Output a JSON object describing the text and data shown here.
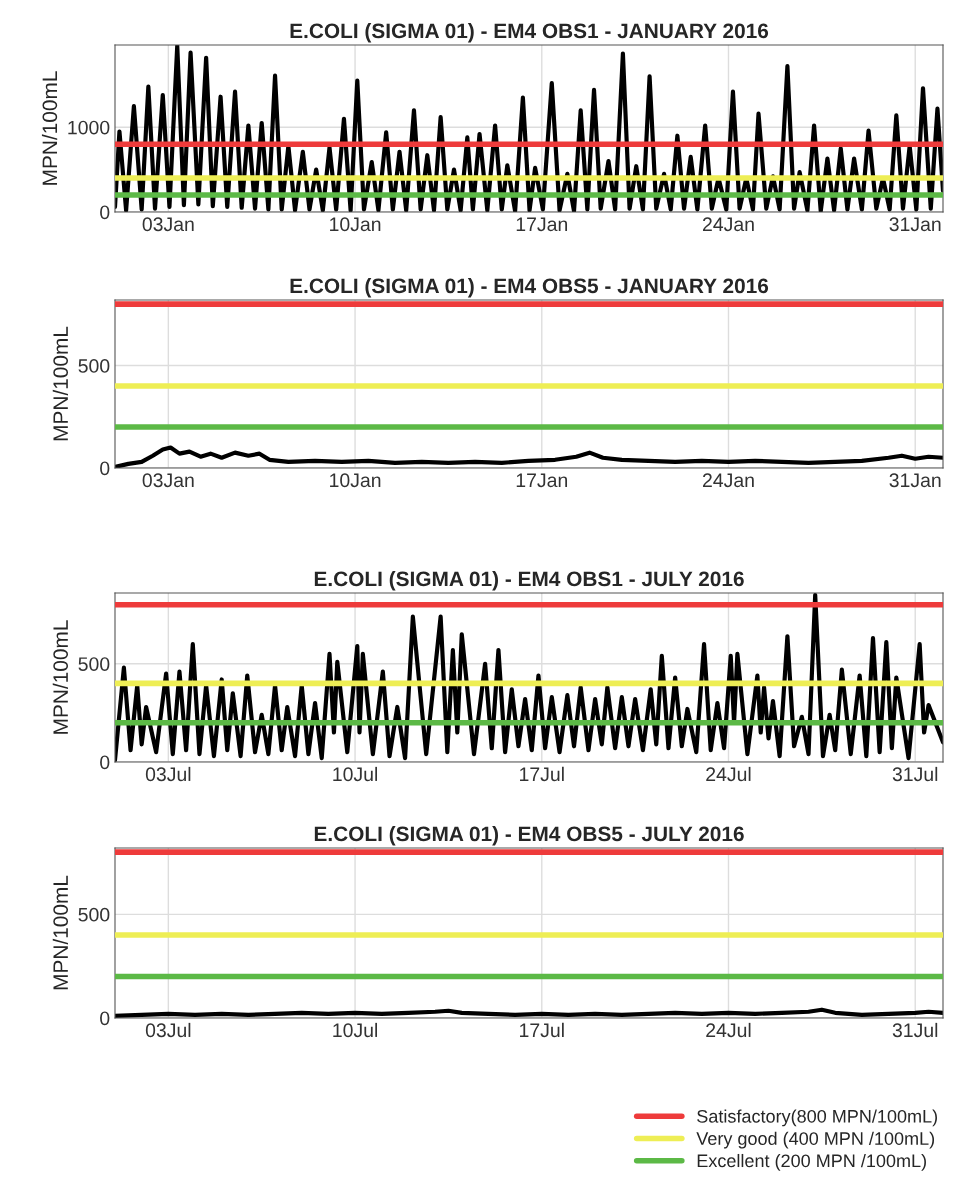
{
  "chart_data": [
    {
      "type": "line",
      "title": "E.COLI (SIGMA 01) - EM4 OBS1 - JANUARY 2016",
      "ylabel": "MPN/100mL",
      "grid": true,
      "legend": false,
      "line_style": "solid",
      "xlim": [
        "2016-01-01T00:00",
        "2016-02-01T01:00"
      ],
      "xticks": [
        {
          "value": "2016-01-03",
          "label": "03Jan"
        },
        {
          "value": "2016-01-10",
          "label": "10Jan"
        },
        {
          "value": "2016-01-17",
          "label": "17Jan"
        },
        {
          "value": "2016-01-24",
          "label": "24Jan"
        },
        {
          "value": "2016-01-31",
          "label": "31Jan"
        }
      ],
      "ylim": [
        0,
        1970
      ],
      "yticks": [
        0,
        1000
      ],
      "series": [
        {
          "color": "#000000",
          "x": [
            "2016-01-01T00:00",
            "2016-01-01T04:00",
            "2016-01-01T10:00",
            "2016-01-01T17:00",
            "2016-01-02T00:00",
            "2016-01-02T06:00",
            "2016-01-02T12:00",
            "2016-01-02T19:00",
            "2016-01-03T01:00",
            "2016-01-03T08:00",
            "2016-01-03T14:00",
            "2016-01-03T20:00",
            "2016-01-04T03:00",
            "2016-01-04T10:00",
            "2016-01-04T16:00",
            "2016-01-04T23:00",
            "2016-01-05T05:00",
            "2016-01-05T12:00",
            "2016-01-05T18:00",
            "2016-01-06T00:00",
            "2016-01-06T06:00",
            "2016-01-06T12:00",
            "2016-01-06T18:00",
            "2016-01-07T00:00",
            "2016-01-07T06:00",
            "2016-01-07T12:00",
            "2016-01-07T18:00",
            "2016-01-08T01:00",
            "2016-01-08T07:00",
            "2016-01-08T13:00",
            "2016-01-08T19:00",
            "2016-01-09T01:00",
            "2016-01-09T07:00",
            "2016-01-09T14:00",
            "2016-01-09T20:00",
            "2016-01-10T02:00",
            "2016-01-10T08:00",
            "2016-01-10T15:00",
            "2016-01-10T21:00",
            "2016-01-11T04:00",
            "2016-01-11T10:00",
            "2016-01-11T16:00",
            "2016-01-11T22:00",
            "2016-01-12T05:00",
            "2016-01-12T11:00",
            "2016-01-12T17:00",
            "2016-01-12T23:00",
            "2016-01-13T05:00",
            "2016-01-13T11:00",
            "2016-01-13T17:00",
            "2016-01-13T23:00",
            "2016-01-14T05:00",
            "2016-01-14T10:00",
            "2016-01-14T16:00",
            "2016-01-14T23:00",
            "2016-01-15T06:00",
            "2016-01-15T12:00",
            "2016-01-15T17:00",
            "2016-01-16T00:00",
            "2016-01-16T07:00",
            "2016-01-16T13:00",
            "2016-01-16T18:00",
            "2016-01-17T01:00",
            "2016-01-17T09:00",
            "2016-01-17T16:00",
            "2016-01-17T23:00",
            "2016-01-18T05:00",
            "2016-01-18T11:00",
            "2016-01-18T17:00",
            "2016-01-18T23:00",
            "2016-01-19T05:00",
            "2016-01-19T12:00",
            "2016-01-19T18:00",
            "2016-01-20T01:00",
            "2016-01-20T07:00",
            "2016-01-20T13:00",
            "2016-01-20T19:00",
            "2016-01-21T01:00",
            "2016-01-21T07:00",
            "2016-01-21T14:00",
            "2016-01-21T20:00",
            "2016-01-22T02:00",
            "2016-01-22T08:00",
            "2016-01-22T14:00",
            "2016-01-22T20:00",
            "2016-01-23T03:00",
            "2016-01-23T09:00",
            "2016-01-23T15:00",
            "2016-01-23T22:00",
            "2016-01-24T04:00",
            "2016-01-24T10:00",
            "2016-01-24T16:00",
            "2016-01-24T22:00",
            "2016-01-25T03:00",
            "2016-01-25T10:00",
            "2016-01-25T16:00",
            "2016-01-25T22:00",
            "2016-01-26T05:00",
            "2016-01-26T11:00",
            "2016-01-26T16:00",
            "2016-01-26T23:00",
            "2016-01-27T05:00",
            "2016-01-27T11:00",
            "2016-01-27T17:00",
            "2016-01-27T23:00",
            "2016-01-28T05:00",
            "2016-01-28T11:00",
            "2016-01-28T17:00",
            "2016-01-29T00:00",
            "2016-01-29T06:00",
            "2016-01-29T13:00",
            "2016-01-29T19:00",
            "2016-01-30T01:00",
            "2016-01-30T07:00",
            "2016-01-30T13:00",
            "2016-01-30T19:00",
            "2016-01-31T01:00",
            "2016-01-31T07:00",
            "2016-01-31T14:00",
            "2016-01-31T20:00",
            "2016-02-01T01:00"
          ],
          "values": [
            60,
            950,
            20,
            1250,
            30,
            1480,
            40,
            1380,
            60,
            1960,
            80,
            1880,
            90,
            1820,
            70,
            1360,
            60,
            1420,
            50,
            1020,
            40,
            1050,
            30,
            1610,
            30,
            780,
            20,
            710,
            30,
            500,
            20,
            760,
            30,
            1100,
            20,
            1550,
            30,
            590,
            20,
            940,
            30,
            710,
            20,
            1200,
            30,
            670,
            20,
            1120,
            30,
            500,
            20,
            880,
            30,
            920,
            20,
            1020,
            30,
            550,
            10,
            1350,
            20,
            520,
            30,
            1520,
            20,
            450,
            10,
            1200,
            30,
            1440,
            40,
            600,
            30,
            1870,
            40,
            540,
            30,
            1600,
            40,
            450,
            30,
            900,
            40,
            650,
            30,
            1020,
            40,
            400,
            30,
            1420,
            40,
            400,
            30,
            1160,
            40,
            420,
            30,
            1720,
            40,
            470,
            20,
            1020,
            10,
            630,
            20,
            750,
            30,
            630,
            30,
            960,
            40,
            400,
            30,
            1140,
            40,
            780,
            30,
            1460,
            40,
            1220,
            250
          ]
        }
      ],
      "ref_lines": [
        {
          "axis": "y",
          "value": 800,
          "color": "#ee3b3b"
        },
        {
          "axis": "y",
          "value": 400,
          "color": "#eeee55"
        },
        {
          "axis": "y",
          "value": 200,
          "color": "#5cb946"
        }
      ]
    },
    {
      "type": "line",
      "title": "E.COLI (SIGMA 01) - EM4 OBS5 - JANUARY 2016",
      "ylabel": "MPN/100mL",
      "grid": true,
      "legend": false,
      "line_style": "solid",
      "xlim": [
        "2016-01-01T00:00",
        "2016-02-01T01:00"
      ],
      "xticks": [
        {
          "value": "2016-01-03",
          "label": "03Jan"
        },
        {
          "value": "2016-01-10",
          "label": "10Jan"
        },
        {
          "value": "2016-01-17",
          "label": "17Jan"
        },
        {
          "value": "2016-01-24",
          "label": "24Jan"
        },
        {
          "value": "2016-01-31",
          "label": "31Jan"
        }
      ],
      "ylim": [
        0,
        820
      ],
      "yticks": [
        0,
        500
      ],
      "series": [
        {
          "color": "#000000",
          "x": [
            "2016-01-01T00:00",
            "2016-01-01T12:00",
            "2016-01-02T00:00",
            "2016-01-02T10:00",
            "2016-01-02T19:00",
            "2016-01-03T02:00",
            "2016-01-03T10:00",
            "2016-01-03T19:00",
            "2016-01-04T05:00",
            "2016-01-04T14:00",
            "2016-01-05T00:00",
            "2016-01-05T12:00",
            "2016-01-06T00:00",
            "2016-01-06T10:00",
            "2016-01-06T19:00",
            "2016-01-07T12:00",
            "2016-01-08T12:00",
            "2016-01-09T12:00",
            "2016-01-10T12:00",
            "2016-01-11T12:00",
            "2016-01-12T12:00",
            "2016-01-13T12:00",
            "2016-01-14T12:00",
            "2016-01-15T12:00",
            "2016-01-16T12:00",
            "2016-01-17T12:00",
            "2016-01-18T07:00",
            "2016-01-18T19:00",
            "2016-01-19T07:00",
            "2016-01-20T00:00",
            "2016-01-21T00:00",
            "2016-01-22T00:00",
            "2016-01-23T00:00",
            "2016-01-24T00:00",
            "2016-01-25T00:00",
            "2016-01-26T00:00",
            "2016-01-27T00:00",
            "2016-01-28T00:00",
            "2016-01-29T00:00",
            "2016-01-30T00:00",
            "2016-01-30T12:00",
            "2016-01-31T00:00",
            "2016-01-31T12:00",
            "2016-02-01T01:00"
          ],
          "values": [
            5,
            20,
            30,
            60,
            90,
            100,
            70,
            80,
            55,
            70,
            50,
            75,
            60,
            70,
            40,
            30,
            35,
            30,
            35,
            25,
            30,
            25,
            30,
            25,
            35,
            40,
            55,
            75,
            50,
            40,
            35,
            30,
            35,
            30,
            35,
            30,
            25,
            30,
            35,
            50,
            60,
            45,
            55,
            50
          ]
        }
      ],
      "ref_lines": [
        {
          "axis": "y",
          "value": 800,
          "color": "#ee3b3b"
        },
        {
          "axis": "y",
          "value": 400,
          "color": "#eeee55"
        },
        {
          "axis": "y",
          "value": 200,
          "color": "#5cb946"
        }
      ]
    },
    {
      "type": "line",
      "title": "E.COLI (SIGMA 01) - EM4 OBS1 - JULY 2016",
      "ylabel": "MPN/100mL",
      "grid": true,
      "legend": false,
      "line_style": "solid",
      "xlim": [
        "2016-07-01T00:00",
        "2016-08-01T01:00"
      ],
      "xticks": [
        {
          "value": "2016-07-03",
          "label": "03Jul"
        },
        {
          "value": "2016-07-10",
          "label": "10Jul"
        },
        {
          "value": "2016-07-17",
          "label": "17Jul"
        },
        {
          "value": "2016-07-24",
          "label": "24Jul"
        },
        {
          "value": "2016-07-31",
          "label": "31Jul"
        }
      ],
      "ylim": [
        0,
        860
      ],
      "yticks": [
        0,
        500
      ],
      "series": [
        {
          "color": "#000000",
          "x": [
            "2016-07-01T00:00",
            "2016-07-01T08:00",
            "2016-07-01T14:00",
            "2016-07-01T20:00",
            "2016-07-02T00:00",
            "2016-07-02T04:00",
            "2016-07-02T13:00",
            "2016-07-02T22:00",
            "2016-07-03T04:00",
            "2016-07-03T10:00",
            "2016-07-03T16:00",
            "2016-07-03T22:00",
            "2016-07-04T04:00",
            "2016-07-04T10:00",
            "2016-07-04T17:00",
            "2016-07-05T00:00",
            "2016-07-05T05:00",
            "2016-07-05T10:00",
            "2016-07-05T17:00",
            "2016-07-05T23:00",
            "2016-07-06T06:00",
            "2016-07-06T12:00",
            "2016-07-06T18:00",
            "2016-07-07T00:00",
            "2016-07-07T06:00",
            "2016-07-07T11:00",
            "2016-07-07T18:00",
            "2016-07-08T00:00",
            "2016-07-08T06:00",
            "2016-07-08T12:00",
            "2016-07-08T18:00",
            "2016-07-09T01:00",
            "2016-07-09T05:00",
            "2016-07-09T08:00",
            "2016-07-09T17:00",
            "2016-07-10T02:00",
            "2016-07-10T04:00",
            "2016-07-10T07:00",
            "2016-07-10T16:00",
            "2016-07-11T01:00",
            "2016-07-11T07:00",
            "2016-07-11T14:00",
            "2016-07-11T21:00",
            "2016-07-12T04:00",
            "2016-07-12T16:00",
            "2016-07-13T05:00",
            "2016-07-13T11:00",
            "2016-07-13T16:00",
            "2016-07-13T20:00",
            "2016-07-14T00:00",
            "2016-07-14T11:00",
            "2016-07-14T21:00",
            "2016-07-15T03:00",
            "2016-07-15T09:00",
            "2016-07-15T15:00",
            "2016-07-15T21:00",
            "2016-07-16T03:00",
            "2016-07-16T09:00",
            "2016-07-16T15:00",
            "2016-07-16T21:00",
            "2016-07-17T03:00",
            "2016-07-17T09:00",
            "2016-07-17T16:00",
            "2016-07-17T23:00",
            "2016-07-18T05:00",
            "2016-07-18T11:00",
            "2016-07-18T18:00",
            "2016-07-19T00:00",
            "2016-07-19T06:00",
            "2016-07-19T11:00",
            "2016-07-19T18:00",
            "2016-07-20T00:00",
            "2016-07-20T06:00",
            "2016-07-20T12:00",
            "2016-07-20T19:00",
            "2016-07-21T02:00",
            "2016-07-21T07:00",
            "2016-07-21T12:00",
            "2016-07-21T18:00",
            "2016-07-22T00:00",
            "2016-07-22T06:00",
            "2016-07-22T11:00",
            "2016-07-22T19:00",
            "2016-07-23T02:00",
            "2016-07-23T08:00",
            "2016-07-23T14:00",
            "2016-07-23T20:00",
            "2016-07-24T02:00",
            "2016-07-24T05:00",
            "2016-07-24T08:00",
            "2016-07-24T17:00",
            "2016-07-25T02:00",
            "2016-07-25T05:00",
            "2016-07-25T08:00",
            "2016-07-25T12:00",
            "2016-07-25T16:00",
            "2016-07-25T22:00",
            "2016-07-26T05:00",
            "2016-07-26T11:00",
            "2016-07-26T18:00",
            "2016-07-27T00:00",
            "2016-07-27T06:00",
            "2016-07-27T13:00",
            "2016-07-27T19:00",
            "2016-07-28T00:00",
            "2016-07-28T06:00",
            "2016-07-28T14:00",
            "2016-07-28T22:00",
            "2016-07-29T04:00",
            "2016-07-29T10:00",
            "2016-07-29T16:00",
            "2016-07-29T22:00",
            "2016-07-30T03:00",
            "2016-07-30T07:00",
            "2016-07-30T18:00",
            "2016-07-31T04:00",
            "2016-07-31T08:00",
            "2016-07-31T12:00",
            "2016-08-01T01:00"
          ],
          "values": [
            10,
            480,
            60,
            390,
            90,
            280,
            50,
            450,
            40,
            460,
            60,
            600,
            40,
            390,
            30,
            420,
            60,
            350,
            30,
            440,
            50,
            240,
            40,
            390,
            60,
            280,
            30,
            390,
            40,
            300,
            20,
            550,
            150,
            510,
            50,
            590,
            150,
            550,
            40,
            460,
            30,
            280,
            20,
            740,
            40,
            740,
            50,
            570,
            150,
            650,
            40,
            500,
            70,
            570,
            50,
            370,
            80,
            320,
            60,
            440,
            70,
            330,
            50,
            340,
            80,
            380,
            60,
            320,
            90,
            380,
            70,
            330,
            80,
            320,
            60,
            370,
            90,
            540,
            70,
            430,
            80,
            270,
            50,
            600,
            60,
            300,
            70,
            540,
            200,
            550,
            40,
            440,
            150,
            380,
            120,
            310,
            30,
            640,
            80,
            230,
            40,
            850,
            30,
            240,
            60,
            470,
            40,
            440,
            30,
            630,
            50,
            610,
            70,
            430,
            20,
            600,
            150,
            290,
            100
          ]
        }
      ],
      "ref_lines": [
        {
          "axis": "y",
          "value": 800,
          "color": "#ee3b3b"
        },
        {
          "axis": "y",
          "value": 400,
          "color": "#eeee55"
        },
        {
          "axis": "y",
          "value": 200,
          "color": "#5cb946"
        }
      ]
    },
    {
      "type": "line",
      "title": "E.COLI (SIGMA 01) - EM4 OBS5 - JULY 2016",
      "ylabel": "MPN/100mL",
      "grid": true,
      "legend": "bottom right",
      "line_style": "solid",
      "xlim": [
        "2016-07-01T00:00",
        "2016-08-01T01:00"
      ],
      "xticks": [
        {
          "value": "2016-07-03",
          "label": "03Jul"
        },
        {
          "value": "2016-07-10",
          "label": "10Jul"
        },
        {
          "value": "2016-07-17",
          "label": "17Jul"
        },
        {
          "value": "2016-07-24",
          "label": "24Jul"
        },
        {
          "value": "2016-07-31",
          "label": "31Jul"
        }
      ],
      "ylim": [
        0,
        820
      ],
      "yticks": [
        0,
        500
      ],
      "series": [
        {
          "color": "#000000",
          "x": [
            "2016-07-01T00:00",
            "2016-07-02T00:00",
            "2016-07-03T00:00",
            "2016-07-04T00:00",
            "2016-07-05T00:00",
            "2016-07-06T00:00",
            "2016-07-07T00:00",
            "2016-07-08T00:00",
            "2016-07-09T00:00",
            "2016-07-10T00:00",
            "2016-07-11T00:00",
            "2016-07-12T00:00",
            "2016-07-13T00:00",
            "2016-07-13T12:00",
            "2016-07-14T00:00",
            "2016-07-15T00:00",
            "2016-07-16T00:00",
            "2016-07-17T00:00",
            "2016-07-18T00:00",
            "2016-07-19T00:00",
            "2016-07-20T00:00",
            "2016-07-21T00:00",
            "2016-07-22T00:00",
            "2016-07-23T00:00",
            "2016-07-24T00:00",
            "2016-07-25T00:00",
            "2016-07-26T00:00",
            "2016-07-27T00:00",
            "2016-07-27T12:00",
            "2016-07-28T00:00",
            "2016-07-29T00:00",
            "2016-07-30T00:00",
            "2016-07-31T00:00",
            "2016-07-31T12:00",
            "2016-08-01T01:00"
          ],
          "values": [
            10,
            15,
            20,
            15,
            20,
            15,
            20,
            25,
            20,
            25,
            20,
            25,
            30,
            35,
            25,
            20,
            15,
            20,
            15,
            20,
            15,
            20,
            25,
            20,
            25,
            20,
            25,
            30,
            40,
            25,
            15,
            20,
            25,
            30,
            25
          ]
        }
      ],
      "ref_lines": [
        {
          "axis": "y",
          "value": 800,
          "color": "#ee3b3b",
          "label": "Satisfactory(800 MPN/100mL)"
        },
        {
          "axis": "y",
          "value": 400,
          "color": "#eeee55",
          "label": "Very good (400 MPN /100mL)"
        },
        {
          "axis": "y",
          "value": 200,
          "color": "#5cb946",
          "label": "Excellent (200 MPN /100mL)"
        }
      ]
    }
  ]
}
